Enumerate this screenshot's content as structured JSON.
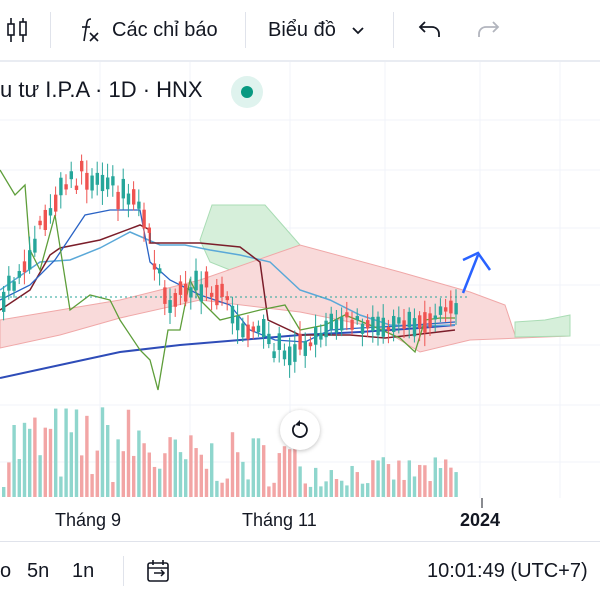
{
  "toolbar": {
    "indicators_label": "Các chỉ báo",
    "chart_type_label": "Biểu đồ"
  },
  "symbol": {
    "title": "u tư I.P.A · 1D · HNX",
    "status_color": "#089981"
  },
  "x_axis": {
    "labels": [
      "Tháng 9",
      "Tháng 11",
      "2024"
    ]
  },
  "bottom_bar": {
    "intervals": [
      "o",
      "5n",
      "1n"
    ],
    "time": "10:01:49 (UTC+7)"
  },
  "colors": {
    "up": "#26a69a",
    "down": "#ef5350",
    "volume_up": "#8fd6cd",
    "volume_down": "#f2a5a5",
    "cloud_up": "#d6efda",
    "cloud_down": "#f9dada",
    "annotation_arrow": "#2962ff"
  },
  "icons": {
    "bar_chart": "candles-icon",
    "indicators": "fx-icon",
    "undo": "undo-icon",
    "redo": "redo-icon",
    "chevron": "chevron-down-icon",
    "reset": "reset-icon",
    "compare": "calendar-range-icon"
  }
}
